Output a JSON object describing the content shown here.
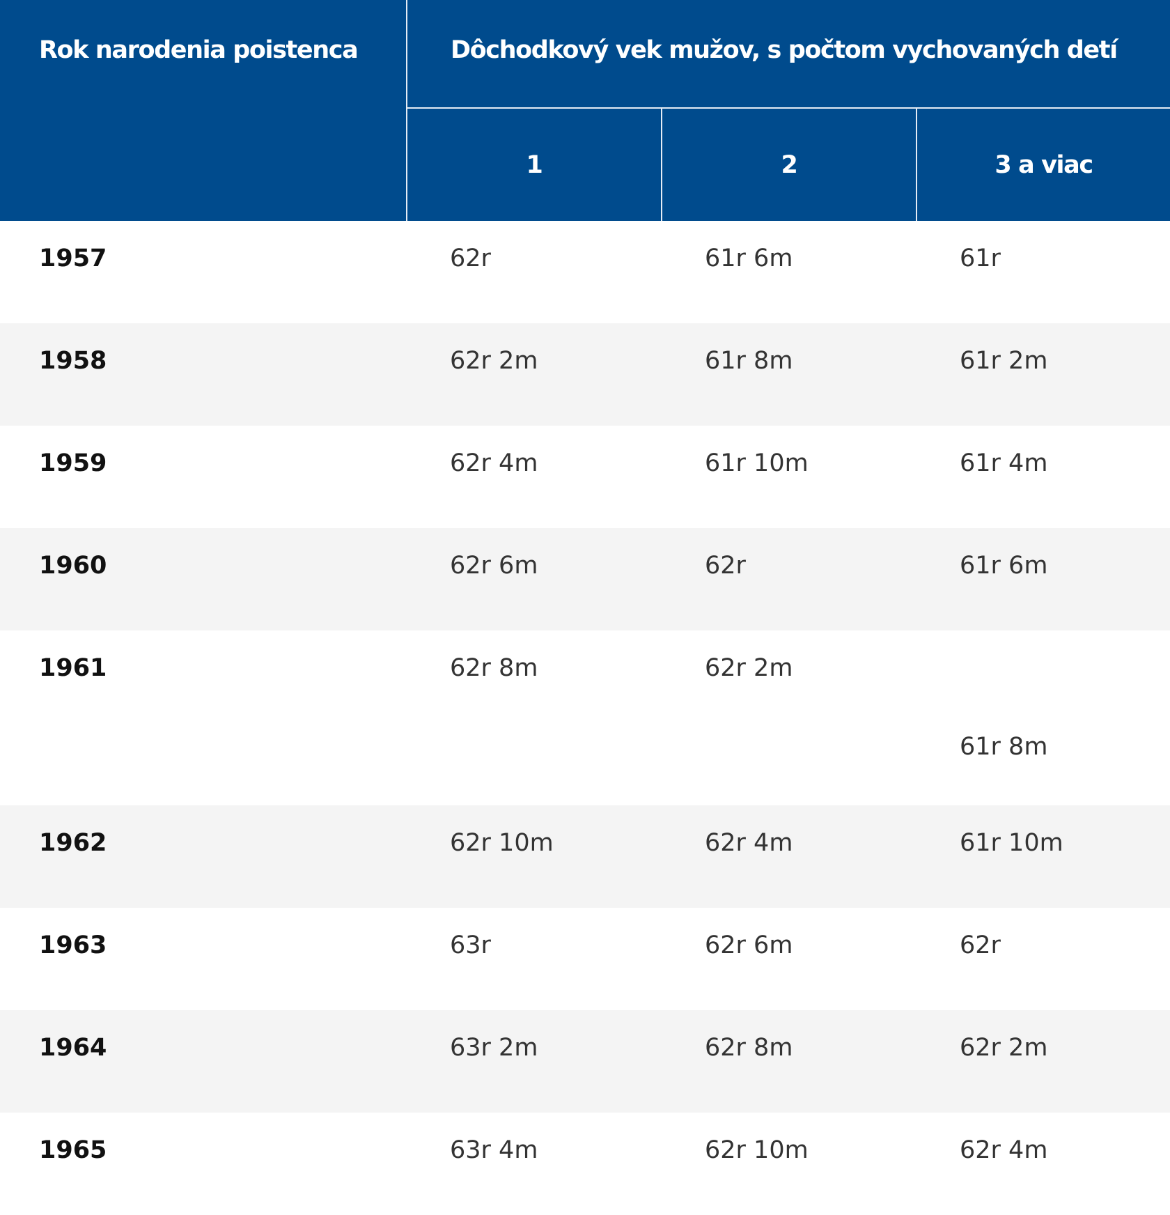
{
  "header": {
    "year_label": "Rok narodenia poistenca",
    "group_label": "Dôchodkový vek mužov, s počtom vychovaných detí",
    "children_counts": [
      "1",
      "2",
      "3 a viac"
    ]
  },
  "rows": [
    {
      "year": "1957",
      "values": [
        "62r",
        "61r 6m",
        "61r"
      ]
    },
    {
      "year": "1958",
      "values": [
        "62r 2m",
        "61r 8m",
        "61r 2m"
      ]
    },
    {
      "year": "1959",
      "values": [
        "62r 4m",
        "61r 10m",
        "61r 4m"
      ]
    },
    {
      "year": "1960",
      "values": [
        "62r 6m",
        "62r",
        "61r 6m"
      ]
    },
    {
      "year": "1961",
      "values": [
        "62r 8m",
        "62r 2m",
        "61r 8m"
      ]
    },
    {
      "year": "1962",
      "values": [
        "62r 10m",
        "62r 4m",
        "61r 10m"
      ]
    },
    {
      "year": "1963",
      "values": [
        "63r",
        "62r 6m",
        "62r"
      ]
    },
    {
      "year": "1964",
      "values": [
        "63r 2m",
        "62r 8m",
        "62r 2m"
      ]
    },
    {
      "year": "1965",
      "values": [
        "63r 4m",
        "62r 10m",
        "62r 4m"
      ]
    }
  ],
  "colors": {
    "header_bg": "#004b8d",
    "header_text": "#ffffff",
    "row_alt_bg": "#f4f4f4"
  }
}
